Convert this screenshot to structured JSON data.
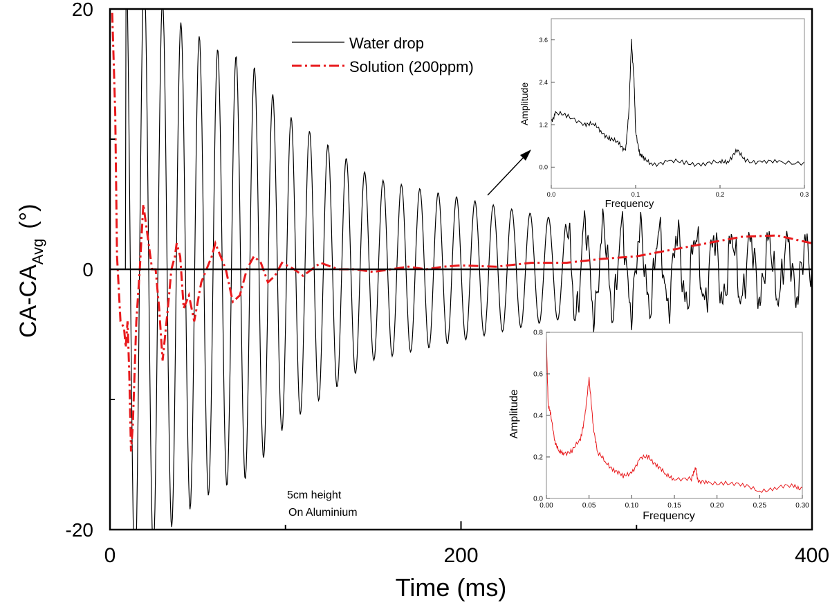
{
  "chart_data": [
    {
      "id": "main",
      "type": "line",
      "xlabel": "Time (ms)",
      "ylabel": "CA-CA",
      "ylabel_sub": "Avg",
      "ylabel_unit": "(°)",
      "xlim": [
        0,
        400
      ],
      "ylim": [
        -20,
        20
      ],
      "x_ticks": [
        0,
        200,
        400
      ],
      "y_ticks": [
        -20,
        0,
        20
      ],
      "x_minor": [
        100,
        300
      ],
      "y_minor": [
        -10,
        10
      ],
      "annotation_lines": [
        "5cm height",
        "On Aluminium"
      ],
      "legend": {
        "position": "top-center"
      },
      "series": [
        {
          "name": "Water drop",
          "color": "#000000",
          "style": "solid",
          "freq_per_ms": 0.0955,
          "phase_start_ms": 9,
          "envelope": [
            [
              10,
              24
            ],
            [
              40,
              19
            ],
            [
              60,
              17
            ],
            [
              80,
              16
            ],
            [
              100,
              12
            ],
            [
              120,
              10
            ],
            [
              150,
              7
            ],
            [
              200,
              5.5
            ],
            [
              250,
              4
            ],
            [
              300,
              3
            ],
            [
              400,
              2
            ]
          ],
          "noise_after_ms": 260
        },
        {
          "name": "Solution (200ppm)",
          "color": "#e8191c",
          "style": "dashdot",
          "points": [
            [
              0,
              21
            ],
            [
              1,
              21
            ],
            [
              3,
              12
            ],
            [
              4,
              1
            ],
            [
              6,
              -4
            ],
            [
              8,
              -4.5
            ],
            [
              9,
              -6
            ],
            [
              10,
              -4
            ],
            [
              11,
              -8
            ],
            [
              12,
              -14
            ],
            [
              13,
              -12
            ],
            [
              15,
              -4
            ],
            [
              17,
              0
            ],
            [
              19,
              5
            ],
            [
              21,
              3
            ],
            [
              24,
              0
            ],
            [
              26,
              0
            ],
            [
              28,
              -3
            ],
            [
              30,
              -7
            ],
            [
              33,
              -3
            ],
            [
              35,
              0
            ],
            [
              37,
              1
            ],
            [
              38,
              2
            ],
            [
              40,
              1
            ],
            [
              42,
              -3
            ],
            [
              45,
              -2
            ],
            [
              48,
              -4
            ],
            [
              52,
              -1
            ],
            [
              55,
              0
            ],
            [
              58,
              1
            ],
            [
              60,
              2
            ],
            [
              63,
              1
            ],
            [
              66,
              0
            ],
            [
              70,
              -2.5
            ],
            [
              74,
              -2
            ],
            [
              78,
              0
            ],
            [
              82,
              1
            ],
            [
              86,
              0.5
            ],
            [
              90,
              -1
            ],
            [
              94,
              -0.5
            ],
            [
              98,
              0.5
            ],
            [
              105,
              0
            ],
            [
              110,
              -0.5
            ],
            [
              115,
              0
            ],
            [
              120,
              0.5
            ],
            [
              130,
              0
            ],
            [
              140,
              0
            ],
            [
              150,
              -0.2
            ],
            [
              160,
              0
            ],
            [
              170,
              0.2
            ],
            [
              180,
              0
            ],
            [
              190,
              0.2
            ],
            [
              200,
              0.3
            ],
            [
              220,
              0.2
            ],
            [
              240,
              0.5
            ],
            [
              260,
              0.5
            ],
            [
              280,
              0.8
            ],
            [
              300,
              1
            ],
            [
              320,
              1.5
            ],
            [
              340,
              2
            ],
            [
              360,
              2.5
            ],
            [
              380,
              2.6
            ],
            [
              400,
              2
            ]
          ]
        }
      ]
    },
    {
      "id": "inset_top",
      "type": "line",
      "xlabel": "Frequency",
      "ylabel": "Amplitude",
      "xlim": [
        0,
        0.3
      ],
      "ylim": [
        -0.6,
        4.2
      ],
      "x_ticks": [
        0.0,
        0.1,
        0.2,
        0.3
      ],
      "x_tick_labels": [
        "0.0",
        "0.1",
        "0.2",
        "0.3"
      ],
      "y_ticks": [
        0.0,
        1.2,
        2.4,
        3.6
      ],
      "y_tick_labels": [
        "0.0",
        "1.2",
        "2.4",
        "3.6"
      ],
      "series": [
        {
          "name": "Water drop spectrum",
          "color": "#000000",
          "points": [
            [
              0,
              1.3
            ],
            [
              0.005,
              1.55
            ],
            [
              0.02,
              1.4
            ],
            [
              0.04,
              1.25
            ],
            [
              0.05,
              1.2
            ],
            [
              0.06,
              1.0
            ],
            [
              0.07,
              0.8
            ],
            [
              0.08,
              0.65
            ],
            [
              0.088,
              0.5
            ],
            [
              0.092,
              1.5
            ],
            [
              0.095,
              3.6
            ],
            [
              0.098,
              2.5
            ],
            [
              0.1,
              1.0
            ],
            [
              0.105,
              0.4
            ],
            [
              0.11,
              0.2
            ],
            [
              0.12,
              0.1
            ],
            [
              0.14,
              0.15
            ],
            [
              0.16,
              0.12
            ],
            [
              0.18,
              0.1
            ],
            [
              0.2,
              0.12
            ],
            [
              0.21,
              0.2
            ],
            [
              0.22,
              0.45
            ],
            [
              0.23,
              0.2
            ],
            [
              0.25,
              0.15
            ],
            [
              0.27,
              0.12
            ],
            [
              0.3,
              0.15
            ]
          ]
        }
      ]
    },
    {
      "id": "inset_bottom",
      "type": "line",
      "xlabel": "Frequency",
      "ylabel": "Amplitude",
      "xlim": [
        0,
        0.3
      ],
      "ylim": [
        0,
        0.8
      ],
      "x_ticks": [
        0.0,
        0.05,
        0.1,
        0.15,
        0.2,
        0.25,
        0.3
      ],
      "x_tick_labels": [
        "0.00",
        "0.05",
        "0.10",
        "0.15",
        "0.20",
        "0.25",
        "0.30"
      ],
      "y_ticks": [
        0.0,
        0.2,
        0.4,
        0.6,
        0.8
      ],
      "y_tick_labels": [
        "0.0",
        "0.2",
        "0.4",
        "0.6",
        "0.8"
      ],
      "series": [
        {
          "name": "Solution spectrum",
          "color": "#e8191c",
          "points": [
            [
              0,
              0.78
            ],
            [
              0.002,
              0.45
            ],
            [
              0.005,
              0.4
            ],
            [
              0.01,
              0.28
            ],
            [
              0.015,
              0.22
            ],
            [
              0.02,
              0.22
            ],
            [
              0.03,
              0.23
            ],
            [
              0.04,
              0.28
            ],
            [
              0.045,
              0.4
            ],
            [
              0.05,
              0.57
            ],
            [
              0.055,
              0.35
            ],
            [
              0.06,
              0.22
            ],
            [
              0.07,
              0.17
            ],
            [
              0.08,
              0.14
            ],
            [
              0.09,
              0.1
            ],
            [
              0.1,
              0.13
            ],
            [
              0.11,
              0.19
            ],
            [
              0.12,
              0.2
            ],
            [
              0.13,
              0.16
            ],
            [
              0.14,
              0.11
            ],
            [
              0.15,
              0.1
            ],
            [
              0.17,
              0.09
            ],
            [
              0.175,
              0.15
            ],
            [
              0.178,
              0.08
            ],
            [
              0.19,
              0.07
            ],
            [
              0.21,
              0.08
            ],
            [
              0.23,
              0.06
            ],
            [
              0.25,
              0.04
            ],
            [
              0.27,
              0.05
            ],
            [
              0.29,
              0.06
            ],
            [
              0.3,
              0.05
            ]
          ]
        }
      ]
    }
  ]
}
